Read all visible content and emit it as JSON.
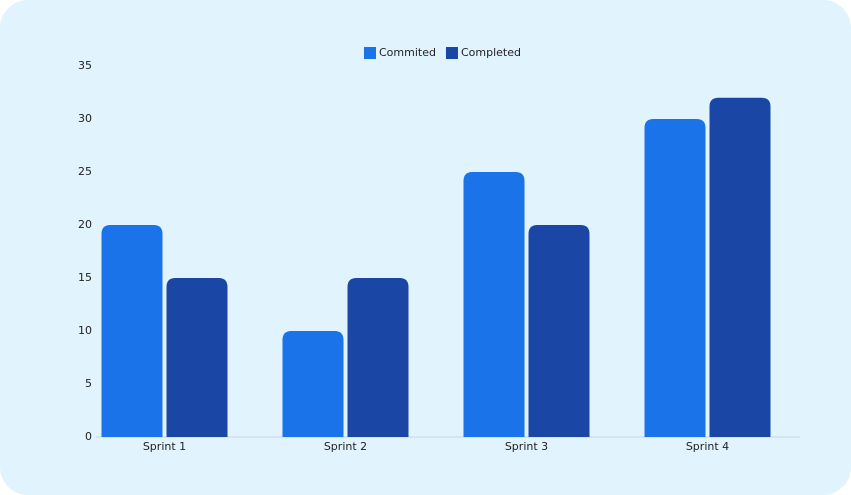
{
  "chart_data": {
    "type": "bar",
    "categories": [
      "Sprint 1",
      "Sprint 2",
      "Sprint 3",
      "Sprint 4"
    ],
    "series": [
      {
        "name": "Commited",
        "color": "#1a73e8",
        "values": [
          20,
          10,
          25,
          30
        ]
      },
      {
        "name": "Completed",
        "color": "#1a47a6",
        "values": [
          15,
          15,
          20,
          32
        ]
      }
    ],
    "ylim": [
      0,
      35
    ],
    "yticks": [
      0,
      5,
      10,
      15,
      20,
      25,
      30,
      35
    ],
    "legend": "top"
  }
}
